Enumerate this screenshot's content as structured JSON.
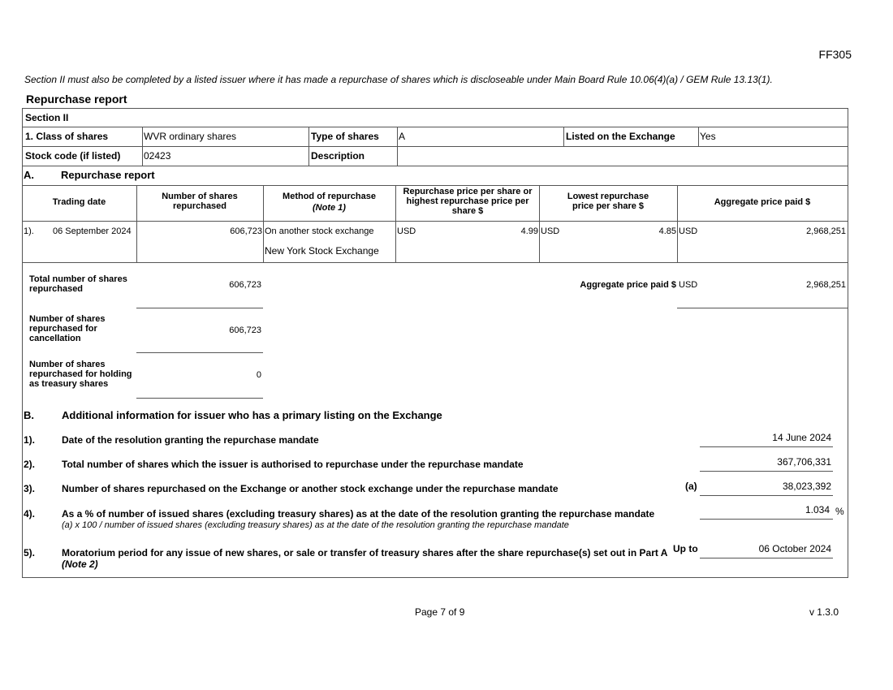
{
  "form_code": "FF305",
  "intro_note": "Section II must also be completed by a listed issuer where it has made a repurchase of shares which is discloseable under Main Board Rule 10.06(4)(a) / GEM Rule 13.13(1).",
  "report_title": "Repurchase report",
  "section": {
    "title": "Section II",
    "class_label": "1. Class of shares",
    "class_value": "WVR ordinary shares",
    "type_label": "Type of shares",
    "type_value": "A",
    "listed_label": "Listed on the Exchange",
    "listed_value": "Yes",
    "stock_code_label": "Stock code (if listed)",
    "stock_code_value": "02423",
    "description_label": "Description",
    "description_value": ""
  },
  "part_a": {
    "letter": "A.",
    "title": "Repurchase report",
    "headers": [
      "Trading date",
      "Number of shares repurchased",
      "Method of repurchase",
      "Repurchase price per share or highest repurchase price per share $",
      "Lowest repurchase price per share $",
      "Aggregate price paid $"
    ],
    "method_note": "(Note 1)",
    "rows": [
      {
        "index": "1).",
        "date": "06 September 2024",
        "shares": "606,723",
        "method": "On another stock exchange",
        "exchange": "New York Stock Exchange",
        "high_currency": "USD",
        "high_price": "4.99",
        "low_currency": "USD",
        "low_price": "4.85",
        "agg_currency": "USD",
        "agg_price": "2,968,251"
      }
    ],
    "total_label": "Total number of shares repurchased",
    "total_value": "606,723",
    "agg_label": "Aggregate price paid $",
    "agg_currency": "USD",
    "agg_value": "2,968,251",
    "cancel_label": "Number of shares repurchased for cancellation",
    "cancel_value": "606,723",
    "treasury_label": "Number of shares repurchased for holding as treasury shares",
    "treasury_value": "0"
  },
  "part_b": {
    "letter": "B.",
    "title": "Additional information for issuer who has a primary listing on the Exchange",
    "items": [
      {
        "index": "1).",
        "label": "Date of the resolution granting the repurchase mandate",
        "value": "14 June 2024"
      },
      {
        "index": "2).",
        "label": "Total number of shares which the issuer is authorised to repurchase under the repurchase mandate",
        "value": "367,706,331"
      },
      {
        "index": "3).",
        "label": "Number of shares repurchased on the Exchange or another stock exchange under the repurchase mandate",
        "tag": "(a)",
        "value": "38,023,392"
      },
      {
        "index": "4).",
        "label": "As a % of number of issued shares (excluding treasury shares) as at the date of the resolution granting the repurchase mandate",
        "sub": "(a) x 100 / number of issued shares (excluding treasury shares) as at the date of the resolution granting the repurchase mandate",
        "value": "1.034",
        "unit": "%"
      },
      {
        "index": "5).",
        "label": "Moratorium period for any issue of new shares, or sale or transfer of treasury shares after the share repurchase(s) set out in Part A",
        "sub": "(Note 2)",
        "tag": "Up to",
        "value": "06 October 2024"
      }
    ]
  },
  "footer": {
    "page": "Page 7 of 9",
    "version": "v 1.3.0"
  }
}
